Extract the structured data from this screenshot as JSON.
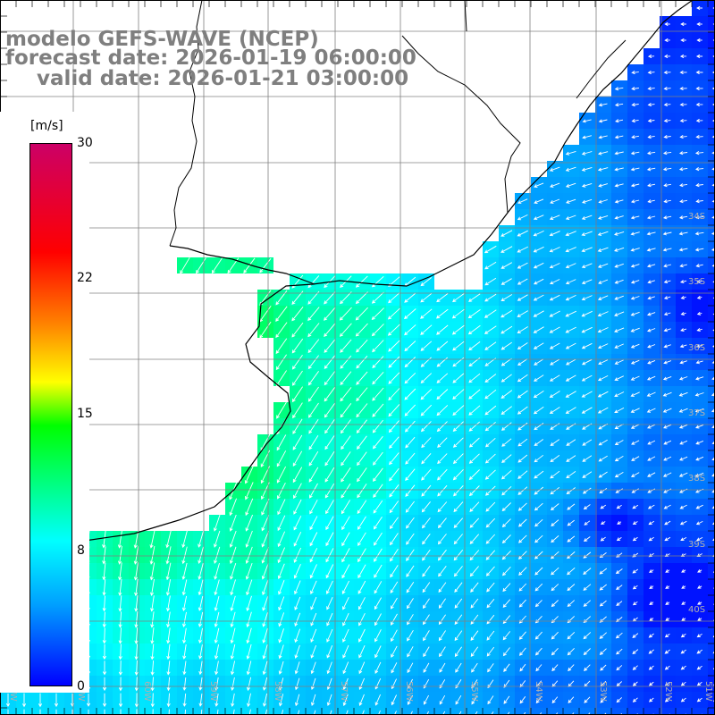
{
  "title": {
    "line1": "modelo GEFS-WAVE (NCEP)",
    "line2": "forecast date: 2026-01-19 06:00:00",
    "line3": "valid date: 2026-01-21 03:00:00"
  },
  "colorbar": {
    "unit": "[m/s]",
    "ticks": [
      "30",
      "22",
      "15",
      "8",
      "0"
    ],
    "tick_values": [
      30,
      22,
      15,
      8,
      0
    ],
    "colors": [
      "#0000ff",
      "#00a0ff",
      "#00ffff",
      "#00ff00",
      "#ffff00",
      "#ff8000",
      "#ff0000",
      "#cc0066"
    ]
  },
  "map": {
    "field": "wind speed",
    "lon_range": [
      -63,
      -47.5
    ],
    "lat_range": [
      -41.5,
      -31
    ],
    "vector_color": "#ffffff",
    "coast_color": "#000000",
    "grid_color": "#808080",
    "lat_labels": [
      "34S",
      "35S",
      "36S",
      "37S",
      "38S",
      "39S",
      "40S"
    ],
    "lon_labels": [
      "62W",
      "61W",
      "60W",
      "59W",
      "58W",
      "57W",
      "56W",
      "55W",
      "54W",
      "53W",
      "52W",
      "51W",
      "50W"
    ]
  }
}
